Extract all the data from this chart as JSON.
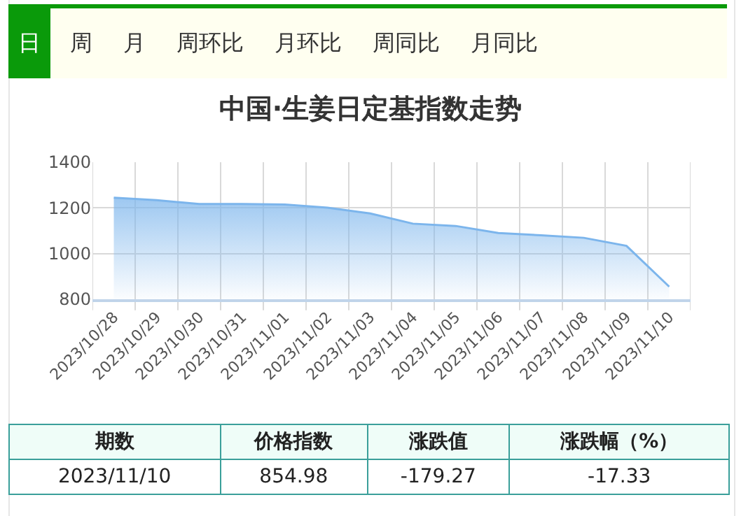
{
  "chart_data": {
    "type": "area",
    "title": "中国·生姜日定基指数走势",
    "categories": [
      "2023/10/28",
      "2023/10/29",
      "2023/10/30",
      "2023/10/31",
      "2023/11/01",
      "2023/11/02",
      "2023/11/03",
      "2023/11/04",
      "2023/11/05",
      "2023/11/06",
      "2023/11/07",
      "2023/11/08",
      "2023/11/09",
      "2023/11/10"
    ],
    "series": [
      {
        "color": "#7cb5ec",
        "values": [
          1245,
          1234,
          1217,
          1217,
          1215,
          1201,
          1176,
          1131,
          1121,
          1090,
          1080,
          1069,
          1034,
          855
        ]
      }
    ],
    "ylim": [
      800,
      1400
    ],
    "yticks": [
      800,
      1000,
      1200,
      1400
    ],
    "grid": true,
    "marker": "none",
    "annotations": [
      "日",
      "周",
      "月",
      "周环比",
      "月环比",
      "周同比",
      "月同比",
      "期数",
      "价格指数",
      "涨跌值",
      "涨跌幅（%）",
      "2023/11/10",
      "854.98",
      "-179.27",
      "-17.33"
    ]
  }
}
